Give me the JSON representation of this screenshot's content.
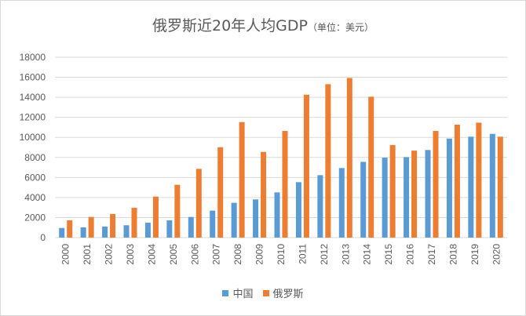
{
  "chart_data": {
    "type": "bar",
    "title": "俄罗斯近20年人均GDP",
    "subtitle": "（单位：美元）",
    "xlabel": "",
    "ylabel": "",
    "ylim": [
      0,
      18000
    ],
    "yticks": [
      0,
      2000,
      4000,
      6000,
      8000,
      10000,
      12000,
      14000,
      16000,
      18000
    ],
    "grid": true,
    "legend": "bottom",
    "categories": [
      "2000",
      "2001",
      "2002",
      "2003",
      "2004",
      "2005",
      "2006",
      "2007",
      "2008",
      "2009",
      "2010",
      "2011",
      "2012",
      "2013",
      "2014",
      "2015",
      "2016",
      "2017",
      "2018",
      "2019",
      "2020"
    ],
    "series": [
      {
        "name": "中国",
        "color": "#5b9bd5",
        "values": [
          960,
          1020,
          1100,
          1230,
          1490,
          1720,
          2060,
          2690,
          3470,
          3810,
          4510,
          5530,
          6230,
          6940,
          7560,
          7980,
          8030,
          8740,
          9880,
          10070,
          10350
        ]
      },
      {
        "name": "俄罗斯",
        "color": "#ed7d31",
        "values": [
          1720,
          2060,
          2350,
          2970,
          4090,
          5270,
          6860,
          9020,
          11530,
          8550,
          10640,
          14260,
          15310,
          15930,
          14060,
          9230,
          8680,
          10640,
          11270,
          11470,
          10070
        ]
      }
    ]
  }
}
